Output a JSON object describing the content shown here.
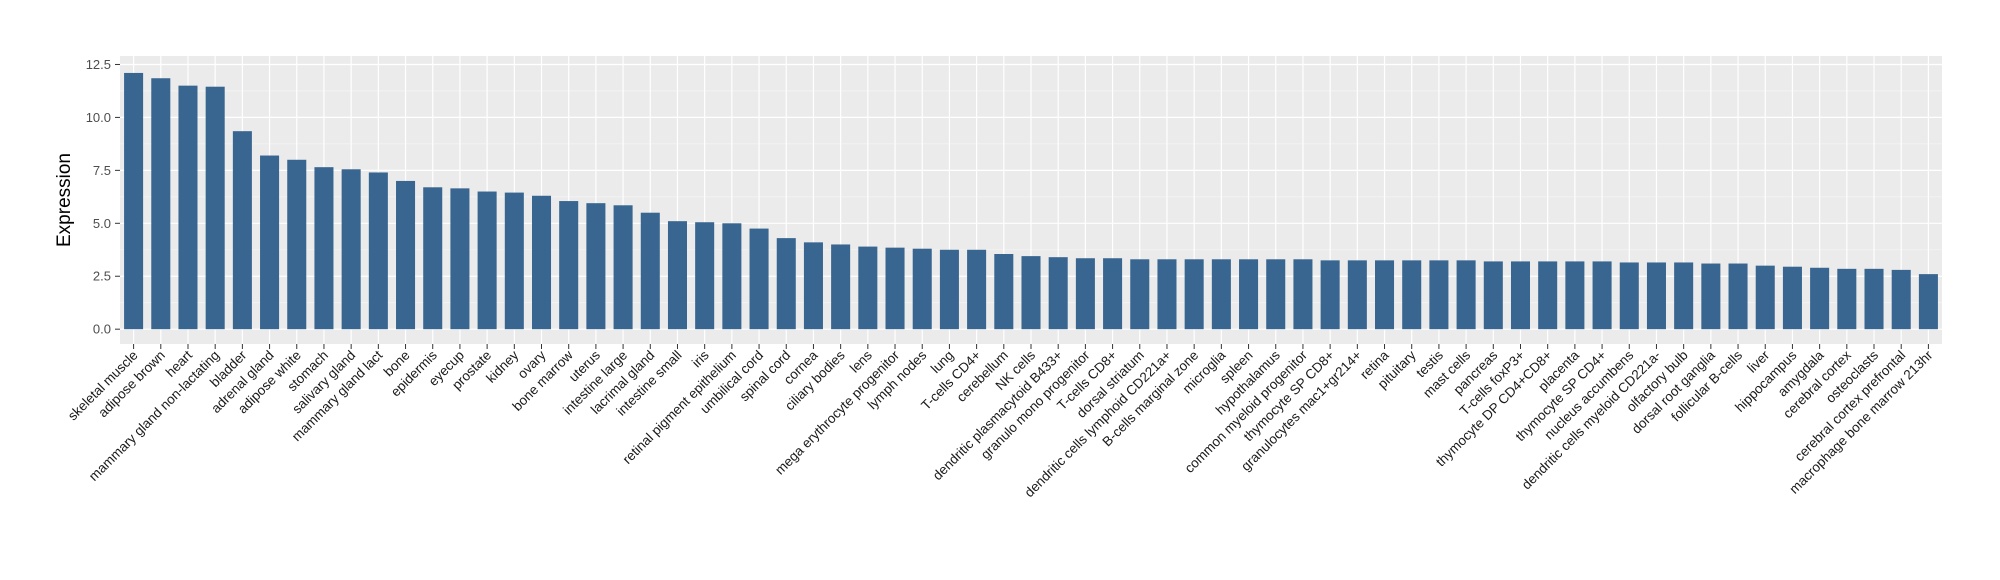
{
  "chart_data": {
    "type": "bar",
    "title": "",
    "xlabel": "",
    "ylabel": "Expression",
    "ylim": [
      -0.7,
      12.9
    ],
    "yticks": [
      "0.0",
      "2.5",
      "5.0",
      "7.5",
      "10.0",
      "12.5"
    ],
    "grid": true,
    "colors": {
      "bar": "#386690",
      "panel": "#ebebeb",
      "grid_major": "#ffffff",
      "grid_minor": "#f4f4f4"
    },
    "categories": [
      "skeletal muscle",
      "adipose brown",
      "heart",
      "mammary gland non-lactating",
      "bladder",
      "adrenal gland",
      "adipose white",
      "stomach",
      "salivary gland",
      "mammary gland  lact",
      "bone",
      "epidermis",
      "eyecup",
      "prostate",
      "kidney",
      "ovary",
      "bone marrow",
      "uterus",
      "intestine large",
      "lacrimal gland",
      "intestine small",
      "iris",
      "retinal pigment epithelium",
      "umbilical cord",
      "spinal cord",
      "cornea",
      "ciliary bodies",
      "lens",
      "mega erythrocyte progenitor",
      "lymph nodes",
      "lung",
      "T-cells CD4+",
      "cerebellum",
      "NK cells",
      "dendritic plasmacytoid B433+",
      "granulo mono progenitor",
      "T-cells CD8+",
      "dorsal striatum",
      "dendritic cells lymphoid CD221a+",
      "B-cells marginal zone",
      "microglia",
      "spleen",
      "hypothalamus",
      "common myeloid progenitor",
      "thymocyte SP CD8+",
      "granulocytes mac1+gr214+",
      "retina",
      "pituitary",
      "testis",
      "mast cells",
      "pancreas",
      "T-cells foxP3+",
      "thymocyte DP CD4+CD8+",
      "placenta",
      "thymocyte SP CD4+",
      "nucleus accumbens",
      "dendritic cells myeloid CD221a-",
      "olfactory bulb",
      "dorsal root ganglia",
      "follicular B-cells",
      "liver",
      "hippocampus",
      "amygdala",
      "cerebral cortex",
      "osteoclasts",
      "cerebral cortex prefrontal",
      "macrophage bone marrow 213hr"
    ],
    "values": [
      12.1,
      11.85,
      11.5,
      11.45,
      9.35,
      8.2,
      8.0,
      7.65,
      7.55,
      7.4,
      7.0,
      6.7,
      6.65,
      6.5,
      6.45,
      6.3,
      6.05,
      5.95,
      5.85,
      5.5,
      5.1,
      5.05,
      5.0,
      4.75,
      4.3,
      4.1,
      4.0,
      3.9,
      3.85,
      3.8,
      3.75,
      3.75,
      3.55,
      3.45,
      3.4,
      3.35,
      3.35,
      3.3,
      3.3,
      3.3,
      3.3,
      3.3,
      3.3,
      3.3,
      3.25,
      3.25,
      3.25,
      3.25,
      3.25,
      3.25,
      3.2,
      3.2,
      3.2,
      3.2,
      3.2,
      3.15,
      3.15,
      3.15,
      3.1,
      3.1,
      3.0,
      2.95,
      2.9,
      2.85,
      2.85,
      2.8,
      2.6
    ]
  }
}
